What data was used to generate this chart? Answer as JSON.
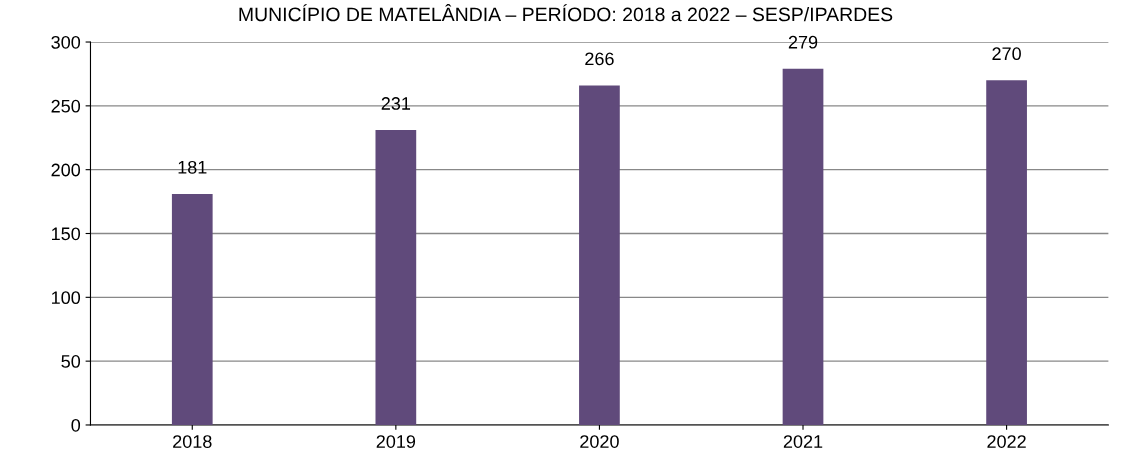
{
  "chart_data": {
    "type": "bar",
    "title": "MUNICÍPIO DE MATELÂNDIA – PERÍODO: 2018 a 2022 – SESP/IPARDES",
    "categories": [
      "2018",
      "2019",
      "2020",
      "2021",
      "2022"
    ],
    "series": [
      {
        "color": "#604a7b",
        "values": [
          181,
          231,
          266,
          279,
          270
        ]
      }
    ],
    "ylim": [
      0,
      300
    ],
    "yticks": [
      0,
      50,
      100,
      150,
      200,
      250,
      300
    ],
    "grid": "y",
    "data_labels": true
  }
}
